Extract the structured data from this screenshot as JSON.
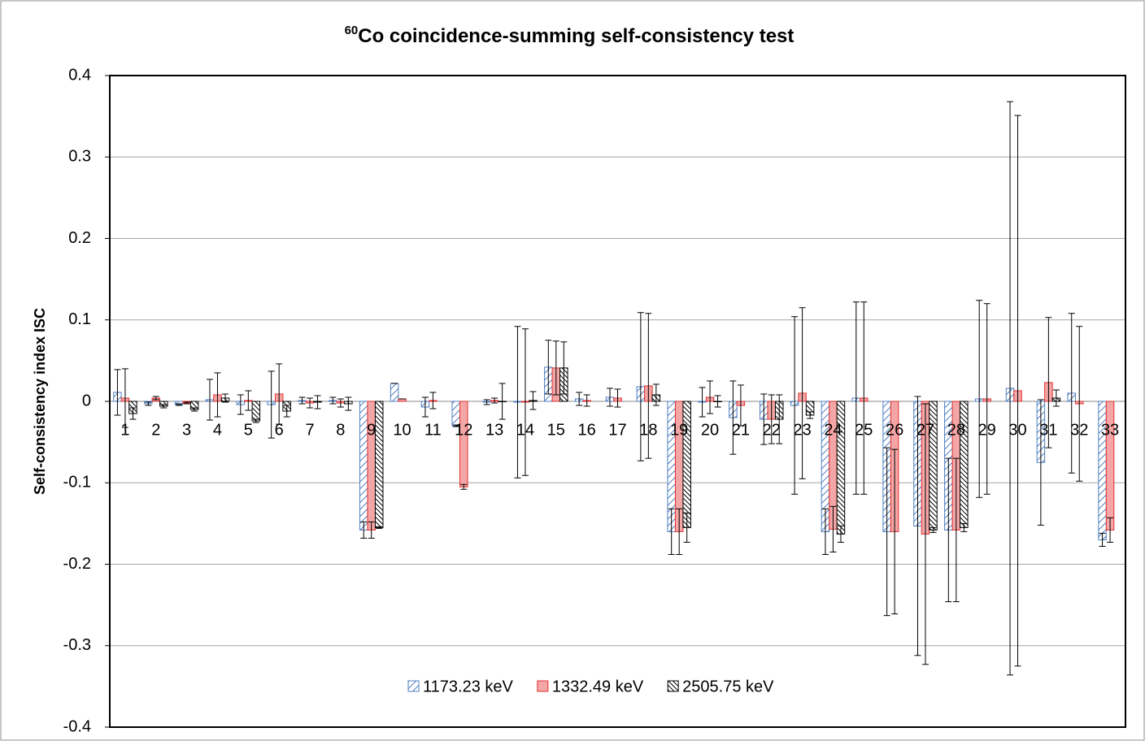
{
  "chart_data": {
    "type": "bar",
    "title_superscript": "60",
    "title": "Co coincidence-summing self-consistency test",
    "ylabel": "Self-consistency index ISC",
    "categories": [
      "1",
      "2",
      "3",
      "4",
      "5",
      "6",
      "7",
      "8",
      "9",
      "10",
      "11",
      "12",
      "13",
      "14",
      "15",
      "16",
      "17",
      "18",
      "19",
      "20",
      "21",
      "22",
      "23",
      "24",
      "25",
      "26",
      "27",
      "28",
      "29",
      "30",
      "31",
      "32",
      "33"
    ],
    "ylim": [
      -0.4,
      0.4
    ],
    "yticks": [
      -0.4,
      -0.3,
      -0.2,
      -0.1,
      0,
      0.1,
      0.2,
      0.3,
      0.4
    ],
    "grid": true,
    "legend": "bottom",
    "series": [
      {
        "name": "1173.23 keV",
        "color": "#4f7fc0",
        "values": [
          0.011,
          -0.003,
          -0.004,
          0.002,
          -0.004,
          -0.004,
          0.001,
          0.001,
          -0.158,
          0.022,
          -0.007,
          -0.03,
          -0.001,
          -0.001,
          0.042,
          0.003,
          0.005,
          0.018,
          -0.16,
          -0.001,
          -0.02,
          -0.022,
          -0.005,
          -0.16,
          0.004,
          -0.16,
          -0.153,
          -0.158,
          0.003,
          0.016,
          -0.075,
          0.01,
          -0.17
        ],
        "errors": [
          0.028,
          0.002,
          0.001,
          0.025,
          0.012,
          0.041,
          0.004,
          0.004,
          0.01,
          0,
          0.012,
          0.001,
          0.003,
          0.093,
          0.033,
          0.008,
          0.011,
          0.091,
          0.028,
          0.018,
          0.045,
          0.031,
          0.109,
          0.028,
          0.118,
          0.103,
          0.159,
          0.088,
          0.121,
          0.352,
          0.077,
          0.098,
          0.008
        ]
      },
      {
        "name": "1332.49 keV",
        "color": "#e03030",
        "values": [
          0.004,
          0.004,
          -0.002,
          0.008,
          0.001,
          0.009,
          -0.002,
          -0.002,
          -0.158,
          0.003,
          0.001,
          -0.105,
          0.001,
          -0.001,
          0.041,
          0.001,
          0.004,
          0.019,
          -0.16,
          0.005,
          -0.005,
          -0.022,
          0.01,
          -0.157,
          0.004,
          -0.16,
          -0.163,
          -0.158,
          0.003,
          0.013,
          0.023,
          -0.003,
          -0.158
        ],
        "errors": [
          0.036,
          0.002,
          0.001,
          0.027,
          0.012,
          0.037,
          0.006,
          0.005,
          0.01,
          0,
          0.01,
          0.003,
          0.003,
          0.09,
          0.033,
          0.007,
          0.011,
          0.089,
          0.028,
          0.02,
          0.025,
          0.03,
          0.105,
          0.028,
          0.118,
          0.101,
          0.16,
          0.088,
          0.117,
          0.338,
          0.08,
          0.095,
          0.015
        ]
      },
      {
        "name": "2505.75 keV",
        "color": "#000000",
        "values": [
          -0.015,
          -0.006,
          -0.01,
          0.004,
          -0.024,
          -0.012,
          -0.001,
          -0.003,
          -0.155,
          null,
          null,
          null,
          0,
          0.001,
          0.041,
          null,
          null,
          0.008,
          -0.155,
          0,
          null,
          -0.022,
          -0.017,
          -0.163,
          null,
          null,
          -0.158,
          -0.155,
          null,
          null,
          0.004,
          null,
          null
        ],
        "errors": [
          0.007,
          0.002,
          0.002,
          0.005,
          0.002,
          0.007,
          0.008,
          0.008,
          0.001,
          null,
          null,
          null,
          0.022,
          0.011,
          0.032,
          null,
          null,
          0.013,
          0.018,
          0.007,
          null,
          0.03,
          0.004,
          0.01,
          null,
          null,
          0.003,
          0.005,
          null,
          null,
          0.01,
          null,
          null
        ]
      }
    ]
  }
}
